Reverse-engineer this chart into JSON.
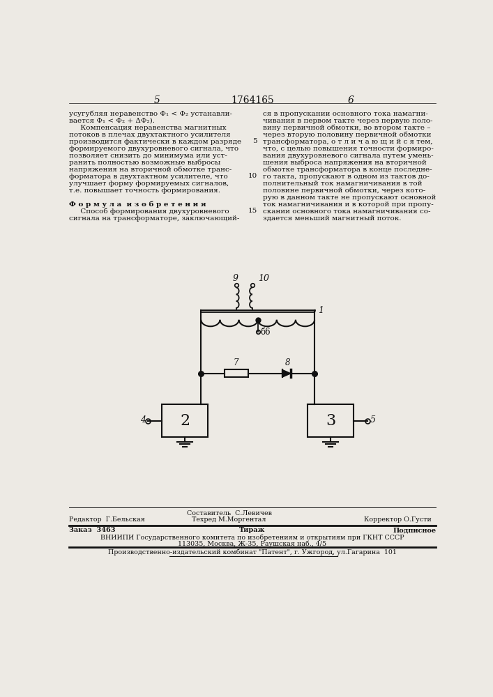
{
  "bg_color": "#edeae4",
  "text_color": "#111111",
  "page_num_left": "5",
  "page_num_center": "1764165",
  "page_num_right": "6",
  "col1_lines": [
    "усугубляя неравенство Ф₁ < Ф₂ устанавли-",
    "вается Ф₁ < Ф₂ + ΔФ₂).",
    "     Компенсация неравенства магнитных",
    "потоков в плечах двухтактного усилителя",
    "производится фактически в каждом разряде",
    "формируемого двухуровневого сигнала, что",
    "позволяет снизить до минимума или уст-",
    "ранить полностью возможные выбросы",
    "напряжения на вторичной обмотке транс-",
    "форматора в двухтактном усилителе, что",
    "улучшает форму формируемых сигналов,",
    "т.е. повышает точность формирования.",
    "",
    "Ф о р м у л а  и з о б р е т е н и я",
    "     Способ формирования двухуровневого",
    "сигнала на трансформаторе, заключающий-"
  ],
  "col2_lines": [
    "ся в пропускании основного тока намагни-",
    "чивания в первом такте через первую поло-",
    "вину первичной обмотки, во втором такте –",
    "через вторую половину первичной обмотки",
    "трансформатора, о т л и ч а ю щ и й с я тем,",
    "что, с целью повышения точности формиро-",
    "вания двухуровневого сигнала путем умень-",
    "шения выброса напряжения на вторичной",
    "обмотке трансформатора в конце последне-",
    "го такта, пропускают в одном из тактов до-",
    "полнительный ток намагничивания в той",
    "половине первичной обмотки, через кото-",
    "рую в данном такте не пропускают основной",
    "ток намагничивания и в которой при пропу-",
    "скании основного тока намагничивания со-",
    "здается меньший магнитный поток."
  ],
  "line_number_rows": [
    4,
    9,
    14
  ],
  "line_number_vals": [
    "5",
    "10",
    "15"
  ],
  "footer_compositor": "Составитель  С.Левичев",
  "footer_editor": "Редактор  Г.Бельская",
  "footer_techred": "Техред М.Моргентал",
  "footer_corrector": "Корректор О.Густи",
  "footer_order": "Заказ  3463",
  "footer_tirazh": "Тираж",
  "footer_podp": "Подписное",
  "footer_vniip": "ВНИИПИ Государственного комитета по изобретениям и открытиям при ГКНТ СССР",
  "footer_addr": "113035, Москва, Ж-35, Раушская наб., 4/5",
  "footer_patent": "Производственно-издательский комбинат \"Патент\", г. Ужгород, ул.Гагарина  101"
}
